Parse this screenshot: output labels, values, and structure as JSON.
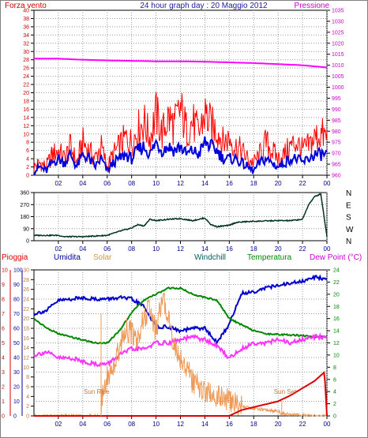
{
  "colors": {
    "wind": "#ff0000",
    "gust": "#0000dd",
    "pressure": "#ff00ff",
    "direction": "#003322",
    "humidity": "#0000cc",
    "temperature": "#008800",
    "dewpoint": "#ff33ff",
    "solar": "#ee9955",
    "rain": "#dd0000",
    "grid": "#999999",
    "axis_dark": "#000000",
    "axis_blue": "#00008b"
  },
  "chart_data": [
    {
      "type": "line",
      "title": "24 hour graph day : 20 Maggio 2012",
      "left_axis_label": "Forza vento",
      "right_axis_label": "Pressione",
      "ylim_left": [
        0,
        40
      ],
      "ylim_right": [
        960,
        1035
      ],
      "left_ticks": [
        "0",
        "2",
        "4",
        "6",
        "8",
        "10",
        "12",
        "14",
        "16",
        "18",
        "20",
        "22",
        "24",
        "26",
        "28",
        "30",
        "32",
        "34",
        "36",
        "38",
        "40"
      ],
      "right_ticks": [
        "960",
        "965",
        "970",
        "975",
        "980",
        "985",
        "990",
        "995",
        "1000",
        "1005",
        "1010",
        "1015",
        "1020",
        "1025",
        "1030",
        "1035"
      ],
      "x_ticks": [
        "02",
        "04",
        "06",
        "08",
        "10",
        "12",
        "14",
        "16",
        "18",
        "20",
        "22",
        "00"
      ],
      "grid": true,
      "series": [
        {
          "key": "wind",
          "x": [
            0,
            0.5,
            1,
            1.5,
            2,
            2.5,
            3,
            3.5,
            4,
            4.5,
            5,
            5.5,
            6,
            6.5,
            7,
            7.5,
            8,
            8.5,
            9,
            9.5,
            10,
            10.5,
            11,
            11.5,
            12,
            12.5,
            13,
            13.5,
            14,
            14.5,
            15,
            15.5,
            16,
            16.5,
            17,
            17.5,
            18,
            18.5,
            19,
            19.5,
            20,
            20.5,
            21,
            21.5,
            22,
            22.5,
            23,
            23.5,
            24
          ],
          "values": [
            2,
            3,
            2,
            5,
            6,
            4,
            7,
            3,
            8,
            6,
            4,
            7,
            2,
            5,
            7,
            9,
            8,
            11,
            13,
            9,
            15,
            10,
            14,
            12,
            16,
            11,
            13,
            10,
            15,
            12,
            11,
            8,
            9,
            7,
            6,
            4,
            3,
            5,
            8,
            6,
            4,
            5,
            7,
            8,
            6,
            7,
            9,
            10,
            9
          ]
        },
        {
          "key": "gust",
          "x": [
            0,
            0.5,
            1,
            1.5,
            2,
            2.5,
            3,
            3.5,
            4,
            4.5,
            5,
            5.5,
            6,
            6.5,
            7,
            7.5,
            8,
            8.5,
            9,
            9.5,
            10,
            10.5,
            11,
            11.5,
            12,
            12.5,
            13,
            13.5,
            14,
            14.5,
            15,
            15.5,
            16,
            16.5,
            17,
            17.5,
            18,
            18.5,
            19,
            19.5,
            20,
            20.5,
            21,
            21.5,
            22,
            22.5,
            23,
            23.5,
            24
          ],
          "values": [
            1,
            2,
            1,
            3,
            4,
            3,
            5,
            2,
            5,
            4,
            2,
            4,
            1,
            3,
            4,
            5,
            4,
            6,
            7,
            5,
            8,
            6,
            7,
            6,
            7,
            5,
            6,
            5,
            8,
            7,
            6,
            4,
            4,
            4,
            3,
            2,
            1,
            3,
            4,
            3,
            2,
            3,
            4,
            4,
            3,
            4,
            5,
            5,
            5
          ]
        },
        {
          "key": "pressure",
          "axis": "right",
          "x": [
            0,
            2,
            4,
            6,
            8,
            10,
            12,
            14,
            16,
            18,
            20,
            22,
            23,
            24
          ],
          "values": [
            1013,
            1013,
            1012.5,
            1012.2,
            1012,
            1011.8,
            1011.8,
            1011.6,
            1011.3,
            1011,
            1010.5,
            1010,
            1009.5,
            1009
          ]
        }
      ]
    },
    {
      "type": "line",
      "ylim": [
        0,
        360
      ],
      "left_ticks": [
        "0",
        "90",
        "180",
        "270",
        "360"
      ],
      "right_labels": [
        "N",
        "W",
        "S",
        "E",
        "N"
      ],
      "x_ticks": [
        "02",
        "04",
        "06",
        "08",
        "10",
        "12",
        "14",
        "16",
        "18",
        "20",
        "22",
        "00"
      ],
      "grid": true,
      "series": [
        {
          "key": "direction",
          "x": [
            0,
            2,
            2.5,
            4,
            6,
            7,
            8,
            8.5,
            9,
            9.5,
            10,
            11,
            12,
            13,
            14,
            14.5,
            15,
            16,
            16.5,
            17,
            18,
            20,
            21,
            22,
            22.5,
            23,
            23.5,
            24
          ],
          "values": [
            40,
            40,
            30,
            30,
            40,
            70,
            95,
            120,
            110,
            160,
            150,
            160,
            165,
            150,
            170,
            120,
            105,
            115,
            135,
            140,
            145,
            150,
            150,
            160,
            270,
            330,
            350,
            30
          ]
        }
      ]
    },
    {
      "type": "line",
      "legend": [
        "Pioggia",
        "Umidita",
        "Solar",
        "Windchill",
        "Temperatura",
        "Dew Point (°C)"
      ],
      "rain_ticks": [
        "0",
        "1",
        "2",
        "3",
        "4",
        "5",
        "6",
        "7",
        "8",
        "9",
        "10"
      ],
      "humidity_ticks": [
        "0",
        "10",
        "20",
        "30",
        "40",
        "50",
        "60",
        "70",
        "80",
        "90",
        "100"
      ],
      "solar_ticks": [
        "0",
        "2",
        "4",
        "6",
        "8",
        "10",
        "12",
        "14",
        "16",
        "18",
        "20",
        "22",
        "24",
        "26",
        "28",
        "30"
      ],
      "temp_ticks": [
        "0",
        "2",
        "4",
        "6",
        "8",
        "10",
        "12",
        "14",
        "16",
        "18",
        "20",
        "22",
        "24"
      ],
      "x_ticks": [
        "02",
        "04",
        "06",
        "08",
        "10",
        "12",
        "14",
        "16",
        "18",
        "20",
        "22",
        "00"
      ],
      "annotations": [
        "Sun Rise",
        "Sun Set"
      ],
      "sunrise_hour": 5.5,
      "sunset_hour": 20.3,
      "grid": true,
      "series": [
        {
          "key": "humidity",
          "axis": "humidity",
          "x": [
            0,
            1,
            2,
            3,
            4,
            5,
            6,
            7,
            8,
            9,
            10,
            11,
            12,
            13,
            14,
            15,
            16,
            17,
            18,
            19,
            20,
            21,
            22,
            23,
            24
          ],
          "values": [
            70,
            72,
            79,
            80,
            81,
            80,
            80,
            81,
            80,
            75,
            61,
            61,
            58,
            60,
            60,
            50,
            63,
            84,
            85,
            88,
            89,
            91,
            92,
            95,
            94
          ]
        },
        {
          "key": "temperature",
          "axis": "temp",
          "x": [
            0,
            1,
            2,
            3,
            4,
            5,
            6,
            7,
            8,
            9,
            10,
            11,
            12,
            13,
            14,
            15,
            16,
            17,
            18,
            19,
            20,
            21,
            22,
            23,
            24
          ],
          "values": [
            16,
            14.5,
            13.5,
            13,
            12.5,
            12,
            12,
            14,
            17,
            19,
            20,
            21,
            21,
            20,
            19.5,
            19,
            16,
            15,
            14,
            13.5,
            13.4,
            13.3,
            13.2,
            13,
            13
          ]
        },
        {
          "key": "dewpoint",
          "axis": "temp",
          "x": [
            0,
            1,
            2,
            3,
            4,
            5,
            6,
            7,
            8,
            9,
            10,
            11,
            12,
            13,
            14,
            15,
            16,
            17,
            18,
            19,
            20,
            21,
            22,
            23,
            24
          ],
          "values": [
            10,
            10.5,
            9.5,
            9.5,
            9,
            8.5,
            8.5,
            10,
            11,
            11,
            12,
            12,
            12.5,
            13,
            12.5,
            11.5,
            9.5,
            11,
            12,
            12,
            12.5,
            12,
            12.5,
            13,
            13
          ]
        },
        {
          "key": "solar",
          "axis": "solar",
          "x": [
            0,
            5.5,
            5.55,
            6,
            6.5,
            7,
            7.5,
            8,
            8.5,
            9,
            9.5,
            10,
            10.5,
            11,
            11.5,
            12,
            12.5,
            13,
            13.5,
            14,
            15,
            16,
            17,
            18,
            19,
            20,
            20.3,
            21,
            22,
            23,
            24
          ],
          "values": [
            0,
            0,
            3,
            8,
            10,
            14,
            18,
            17,
            16,
            20,
            22,
            17,
            24,
            21,
            14,
            12,
            10,
            7,
            6,
            5,
            4,
            3,
            2,
            1.5,
            1.2,
            1,
            0.5,
            0.3,
            0.1,
            0,
            0
          ]
        },
        {
          "key": "rain",
          "axis": "rain",
          "x": [
            0,
            16,
            16.5,
            17,
            18,
            19,
            20,
            21,
            22,
            23,
            23.8,
            24
          ],
          "values": [
            0,
            0,
            0.2,
            0.4,
            0.6,
            0.8,
            1.0,
            1.4,
            1.9,
            2.4,
            3.0,
            0
          ]
        }
      ]
    }
  ]
}
